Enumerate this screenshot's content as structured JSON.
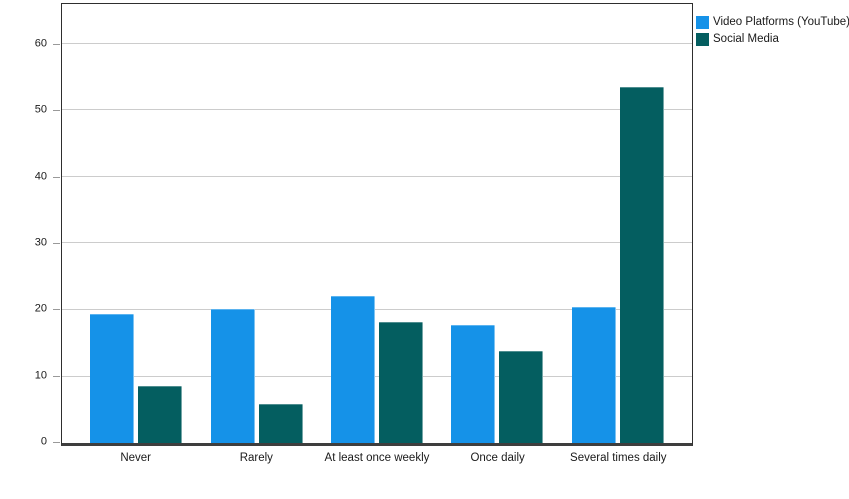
{
  "chart_data": {
    "type": "bar",
    "title": "",
    "xlabel": "",
    "ylabel": "",
    "categories": [
      "Never",
      "Rarely",
      "At least once weekly",
      "Once daily",
      "Several times daily"
    ],
    "series": [
      {
        "name": "Video Platforms (YouTube)",
        "color": "#1592E8",
        "values": [
          19.4,
          20.1,
          22.1,
          17.8,
          20.5
        ]
      },
      {
        "name": "Social Media",
        "color": "#045E60",
        "values": [
          8.5,
          5.8,
          18.2,
          13.9,
          53.5
        ]
      }
    ],
    "ylim": [
      0,
      66
    ],
    "yticks": [
      0,
      10,
      20,
      30,
      40,
      50,
      60
    ],
    "grid": "horizontal",
    "legend_position": "top-right-outside",
    "colors": {
      "gridline": "#cccccc",
      "axis_border": "#2e2e2e",
      "baseline": "#3e3e3e",
      "tick_mark": "#999999",
      "background": "#ffffff"
    }
  }
}
